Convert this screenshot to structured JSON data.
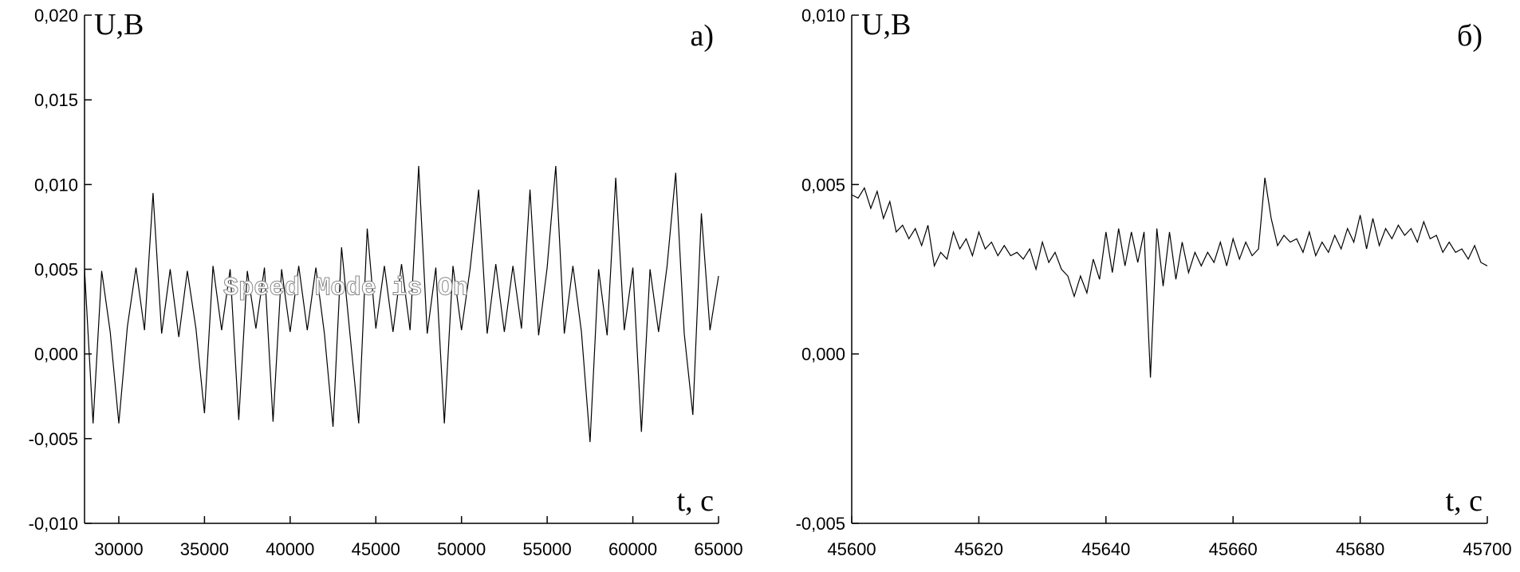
{
  "chart_data": [
    {
      "type": "line",
      "panel_label": "a)",
      "y_label": "U,B",
      "x_label": "t, c",
      "annotation": "Speed Mode is On",
      "color": "#000000",
      "x": [
        28000,
        28500,
        29000,
        29500,
        30000,
        30500,
        31000,
        31500,
        32000,
        32500,
        33000,
        33500,
        34000,
        34500,
        35000,
        35500,
        36000,
        36500,
        37000,
        37500,
        38000,
        38500,
        39000,
        39500,
        40000,
        40500,
        41000,
        41500,
        42000,
        42500,
        43000,
        43500,
        44000,
        44500,
        45000,
        45500,
        46000,
        46500,
        47000,
        47500,
        48000,
        48500,
        49000,
        49500,
        50000,
        50500,
        51000,
        51500,
        52000,
        52500,
        53000,
        53500,
        54000,
        54500,
        55000,
        55500,
        56000,
        56500,
        57000,
        57500,
        58000,
        58500,
        59000,
        59500,
        60000,
        60500,
        61000,
        61500,
        62000,
        62500,
        63000,
        63500,
        64000,
        64500,
        65000
      ],
      "values": [
        0.005,
        -0.0041,
        0.0049,
        0.0013,
        -0.0041,
        0.0016,
        0.0051,
        0.0014,
        0.0095,
        0.0012,
        0.005,
        0.001,
        0.0049,
        0.0015,
        -0.0035,
        0.0052,
        0.0014,
        0.005,
        -0.0039,
        0.0049,
        0.0015,
        0.0051,
        -0.004,
        0.005,
        0.0013,
        0.0052,
        0.0014,
        0.0051,
        0.0012,
        -0.0043,
        0.0063,
        0.0011,
        -0.0041,
        0.0074,
        0.0015,
        0.0052,
        0.0013,
        0.0053,
        0.0014,
        0.0111,
        0.0012,
        0.0051,
        -0.0041,
        0.0052,
        0.0014,
        0.005,
        0.0097,
        0.0012,
        0.0053,
        0.0013,
        0.0052,
        0.0015,
        0.0097,
        0.0011,
        0.0051,
        0.0111,
        0.0012,
        0.0052,
        0.0013,
        -0.0052,
        0.005,
        0.0011,
        0.0104,
        0.0014,
        0.0051,
        -0.0046,
        0.005,
        0.0013,
        0.0052,
        0.0107,
        0.0012,
        -0.0036,
        0.0083,
        0.0014,
        0.0046
      ],
      "xlim": [
        28000,
        65000
      ],
      "xticks": [
        30000,
        35000,
        40000,
        45000,
        50000,
        55000,
        60000,
        65000
      ],
      "ylim": [
        -0.01,
        0.02
      ],
      "yticks": [
        {
          "value": -0.01,
          "label": "-0,010"
        },
        {
          "value": -0.005,
          "label": "-0,005"
        },
        {
          "value": 0,
          "label": "0,000"
        },
        {
          "value": 0.005,
          "label": "0,005"
        },
        {
          "value": 0.01,
          "label": "0,010"
        },
        {
          "value": 0.015,
          "label": "0,015"
        },
        {
          "value": 0.02,
          "label": "0,020"
        }
      ]
    },
    {
      "type": "line",
      "panel_label": "б)",
      "y_label": "U,B",
      "x_label": "t, c",
      "color": "#000000",
      "x": [
        45600,
        45601,
        45602,
        45603,
        45604,
        45605,
        45606,
        45607,
        45608,
        45609,
        45610,
        45611,
        45612,
        45613,
        45614,
        45615,
        45616,
        45617,
        45618,
        45619,
        45620,
        45621,
        45622,
        45623,
        45624,
        45625,
        45626,
        45627,
        45628,
        45629,
        45630,
        45631,
        45632,
        45633,
        45634,
        45635,
        45636,
        45637,
        45638,
        45639,
        45640,
        45641,
        45642,
        45643,
        45644,
        45645,
        45646,
        45647,
        45648,
        45649,
        45650,
        45651,
        45652,
        45653,
        45654,
        45655,
        45656,
        45657,
        45658,
        45659,
        45660,
        45661,
        45662,
        45663,
        45664,
        45665,
        45666,
        45667,
        45668,
        45669,
        45670,
        45671,
        45672,
        45673,
        45674,
        45675,
        45676,
        45677,
        45678,
        45679,
        45680,
        45681,
        45682,
        45683,
        45684,
        45685,
        45686,
        45687,
        45688,
        45689,
        45690,
        45691,
        45692,
        45693,
        45694,
        45695,
        45696,
        45697,
        45698,
        45699,
        45700
      ],
      "values": [
        0.0047,
        0.0046,
        0.0049,
        0.0043,
        0.0048,
        0.004,
        0.0045,
        0.0036,
        0.0038,
        0.0034,
        0.0037,
        0.0032,
        0.0038,
        0.0026,
        0.003,
        0.0028,
        0.0036,
        0.0031,
        0.0034,
        0.0029,
        0.0036,
        0.0031,
        0.0033,
        0.0029,
        0.0032,
        0.0029,
        0.003,
        0.0028,
        0.0031,
        0.0025,
        0.0033,
        0.0027,
        0.003,
        0.0025,
        0.0023,
        0.0017,
        0.0023,
        0.0018,
        0.0028,
        0.0022,
        0.0036,
        0.0024,
        0.0037,
        0.0026,
        0.0036,
        0.0027,
        0.0036,
        -0.0007,
        0.0037,
        0.002,
        0.0036,
        0.0022,
        0.0033,
        0.0024,
        0.003,
        0.0026,
        0.003,
        0.0027,
        0.0033,
        0.0026,
        0.0034,
        0.0028,
        0.0033,
        0.0029,
        0.0031,
        0.0052,
        0.004,
        0.0032,
        0.0035,
        0.0033,
        0.0034,
        0.003,
        0.0036,
        0.0029,
        0.0033,
        0.003,
        0.0035,
        0.0031,
        0.0037,
        0.0033,
        0.0041,
        0.0031,
        0.004,
        0.0032,
        0.0037,
        0.0034,
        0.0038,
        0.0035,
        0.0037,
        0.0033,
        0.0039,
        0.0034,
        0.0035,
        0.003,
        0.0033,
        0.003,
        0.0031,
        0.0028,
        0.0032,
        0.0027,
        0.0026
      ],
      "xlim": [
        45600,
        45700
      ],
      "xticks": [
        45600,
        45620,
        45640,
        45660,
        45680,
        45700
      ],
      "ylim": [
        -0.005,
        0.01
      ],
      "yticks": [
        {
          "value": -0.005,
          "label": "-0,005"
        },
        {
          "value": 0,
          "label": "0,000"
        },
        {
          "value": 0.005,
          "label": "0,005"
        },
        {
          "value": 0.01,
          "label": "0,010"
        }
      ]
    }
  ]
}
